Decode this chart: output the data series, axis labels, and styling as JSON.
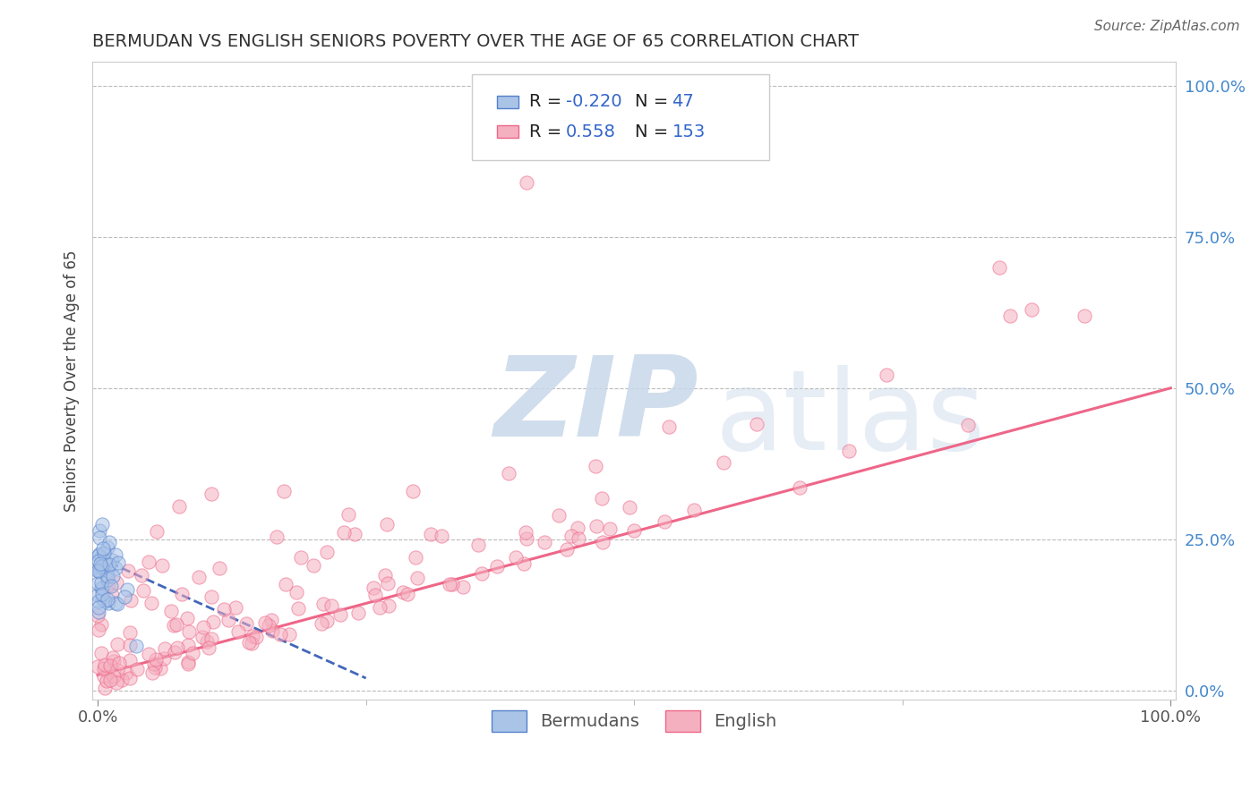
{
  "title": "BERMUDAN VS ENGLISH SENIORS POVERTY OVER THE AGE OF 65 CORRELATION CHART",
  "source": "Source: ZipAtlas.com",
  "ylabel": "Seniors Poverty Over the Age of 65",
  "color_bermuda_fill": "#aac4e8",
  "color_bermuda_edge": "#5580cc",
  "color_english_fill": "#f5b0c0",
  "color_english_edge": "#ee6688",
  "color_trend_bermuda": "#4466bb",
  "color_trend_english": "#ee6688",
  "background_color": "#ffffff",
  "grid_color": "#bbbbbb",
  "watermark_zip_color": "#c8d8ea",
  "watermark_atlas_color": "#c8d8ea",
  "title_fontsize": 14,
  "source_fontsize": 11,
  "axis_label_fontsize": 12,
  "tick_fontsize": 13,
  "legend_fontsize": 14,
  "scatter_size": 120,
  "scatter_alpha": 0.55,
  "n_bermuda": 47,
  "n_english": 153
}
